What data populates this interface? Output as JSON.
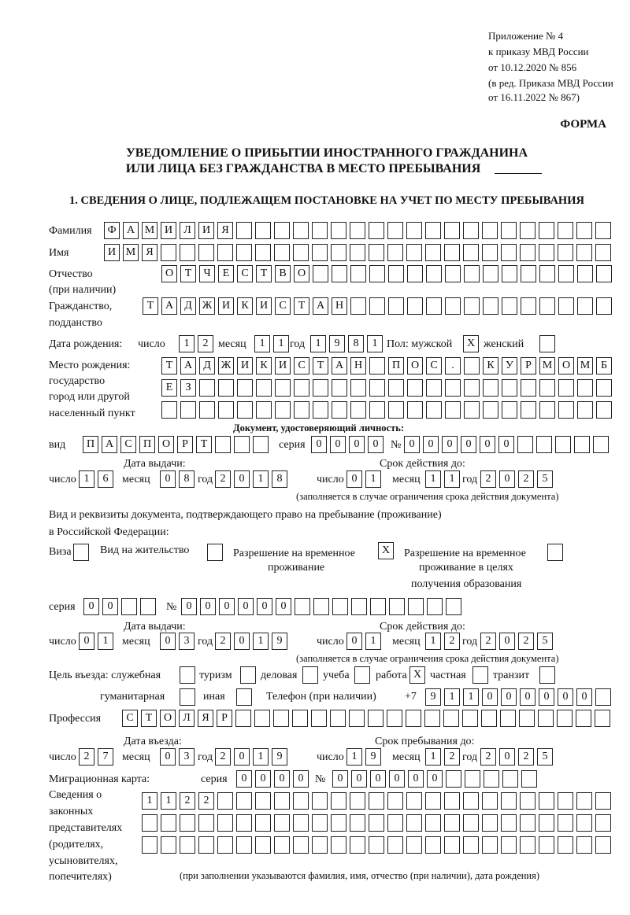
{
  "header": {
    "line1": "Приложение № 4",
    "line2": "к приказу МВД России",
    "line3": "от 10.12.2020 № 856",
    "line4": "(в ред. Приказа МВД России",
    "line5": "от 16.11.2022 № 867)",
    "form_label": "ФОРМА"
  },
  "title": {
    "line1": "УВЕДОМЛЕНИЕ О ПРИБЫТИИ ИНОСТРАННОГО ГРАЖДАНИНА",
    "line2": "ИЛИ ЛИЦА БЕЗ ГРАЖДАНСТВА В МЕСТО ПРЕБЫВАНИЯ"
  },
  "section1": {
    "heading": "1. СВЕДЕНИЯ О ЛИЦЕ, ПОДЛЕЖАЩЕМ ПОСТАНОВКЕ НА УЧЕТ ПО МЕСТУ ПРЕБЫВАНИЯ"
  },
  "labels": {
    "surname": "Фамилия",
    "name": "Имя",
    "patronymic1": "Отчество",
    "patronymic2": "(при наличии)",
    "citizenship1": "Гражданство,",
    "citizenship2": "подданство",
    "birth_date": "Дата рождения:",
    "day": "число",
    "month": "месяц",
    "year": "год",
    "sex": "Пол: мужской",
    "female": "женский",
    "birthplace1": "Место рождения:",
    "birthplace2": "государство",
    "birthplace3": "город или другой",
    "birthplace4": "населенный пункт",
    "id_doc_heading": "Документ, удостоверяющий личность:",
    "kind": "вид",
    "series": "серия",
    "number_sign": "№",
    "issue_date": "Дата выдачи:",
    "valid_until": "Срок действия до:",
    "validity_note": "(заполняется в случае ограничения срока действия документа)",
    "residence_doc1": "Вид и реквизиты документа, подтверждающего право на пребывание (проживание)",
    "residence_doc2": "в Российской Федерации:",
    "visa": "Виза",
    "residence_permit": "Вид на жительство",
    "temp_permit1": "Разрешение на временное",
    "temp_permit2": "проживание",
    "edu_permit1": "Разрешение на временное",
    "edu_permit2": "проживание в целях",
    "edu_permit3": "получения образования",
    "purpose": "Цель въезда: служебная",
    "tourism": "туризм",
    "business": "деловая",
    "study": "учеба",
    "work": "работа",
    "private": "частная",
    "transit": "транзит",
    "humanitarian": "гуманитарная",
    "other": "иная",
    "phone": "Телефон (при наличии)",
    "phone_prefix": "+7",
    "profession": "Профессия",
    "entry_date": "Дата въезда:",
    "stay_until": "Срок пребывания до:",
    "migration_card": "Миграционная карта:",
    "guardians1": "Сведения о",
    "guardians2": "законных",
    "guardians3": "представителях",
    "guardians4": "(родителях,",
    "guardians5": "усыновителях,",
    "guardians6": "попечителях)",
    "guardians_note": "(при заполнении указываются фамилия, имя, отчество (при наличии), дата рождения)"
  },
  "fields": {
    "surname": "ФАМИЛИЯ",
    "name": "ИМЯ",
    "patronymic": "ОТЧЕСТВО",
    "citizenship": "ТАДЖИКИСТАН",
    "birth_day": "12",
    "birth_month": "11",
    "birth_year": "1981",
    "sex_male": "X",
    "sex_female": "",
    "birthplace_line1": "ТАДЖИКИСТАН ПОС. КУРМОМБ",
    "birthplace_line2": "ЕЗ",
    "birthplace_line3": "",
    "id_kind": "ПАСПОРТ",
    "id_series": "0000",
    "id_number": "000000",
    "id_issue_day": "16",
    "id_issue_month": "08",
    "id_issue_year": "2018",
    "id_valid_day": "01",
    "id_valid_month": "11",
    "id_valid_year": "2025",
    "doc_visa": "",
    "doc_residence_permit": "",
    "doc_temp_permit": "X",
    "doc_edu_permit": "",
    "rd_series": "00",
    "rd_number": "000000",
    "rd_issue_day": "01",
    "rd_issue_month": "03",
    "rd_issue_year": "2019",
    "rd_valid_day": "01",
    "rd_valid_month": "12",
    "rd_valid_year": "2025",
    "purpose_official": "",
    "purpose_tourism": "",
    "purpose_business": "",
    "purpose_study": "",
    "purpose_work": "X",
    "purpose_private": "",
    "purpose_transit": "",
    "purpose_humanitarian": "",
    "purpose_other": "",
    "phone": "911000000",
    "profession": "СТОЛЯР",
    "entry_day": "27",
    "entry_month": "03",
    "entry_year": "2019",
    "stay_day": "19",
    "stay_month": "12",
    "stay_year": "2025",
    "mc_series": "0000",
    "mc_number": "000000",
    "guardians_line1": "1122",
    "guardians_line2": "",
    "guardians_line3": ""
  }
}
